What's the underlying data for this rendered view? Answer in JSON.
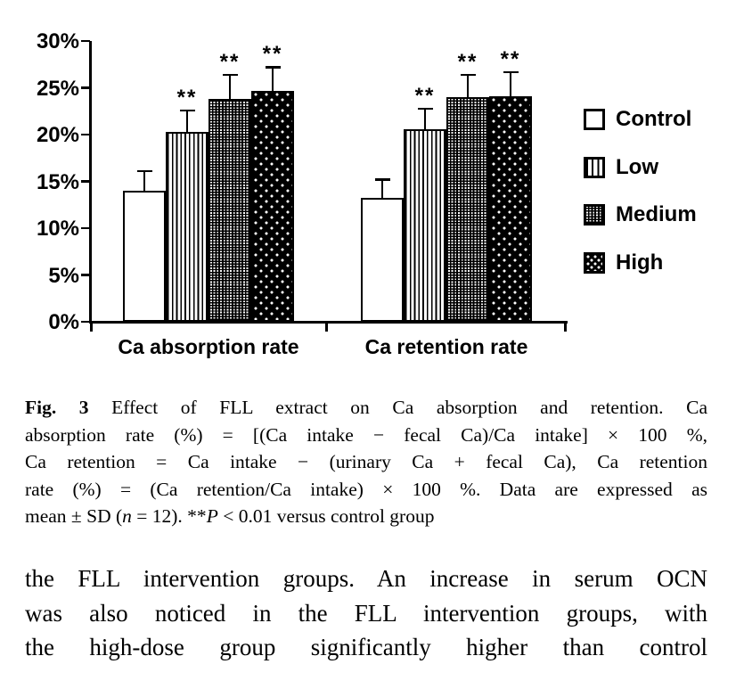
{
  "chart_data": {
    "type": "bar",
    "title": "",
    "categories": [
      "Ca absorption rate",
      "Ca retention rate"
    ],
    "series": [
      {
        "name": "Control",
        "pattern": "plain-white",
        "values": [
          14.0,
          13.2
        ],
        "sd": [
          2.1,
          2.0
        ],
        "significance": [
          "",
          ""
        ]
      },
      {
        "name": "Low",
        "pattern": "vertical-stripes",
        "values": [
          20.3,
          20.6
        ],
        "sd": [
          2.3,
          2.2
        ],
        "significance": [
          "**",
          "**"
        ]
      },
      {
        "name": "Medium",
        "pattern": "dense-white-dots-on-black",
        "values": [
          23.8,
          24.0
        ],
        "sd": [
          2.6,
          2.4
        ],
        "significance": [
          "**",
          "**"
        ]
      },
      {
        "name": "High",
        "pattern": "sparse-white-dots-on-black",
        "values": [
          24.7,
          24.1
        ],
        "sd": [
          2.5,
          2.6
        ],
        "significance": [
          "**",
          "**"
        ]
      }
    ],
    "xlabel": "",
    "ylabel": "",
    "ylim": [
      0,
      30
    ],
    "ytick_values": [
      0,
      5,
      10,
      15,
      20,
      25,
      30
    ],
    "yticks": [
      "0%",
      "5%",
      "10%",
      "15%",
      "20%",
      "25%",
      "30%"
    ],
    "grid": false,
    "legend_position": "right",
    "error_bars": "upper SD only, capped"
  },
  "figure_caption": {
    "fig_label": "Fig. 3",
    "line1_rest": " Effect of FLL extract on Ca absorption and retention. Ca",
    "line2": "absorption rate (%) = [(Ca intake − fecal Ca)/Ca intake] × 100 %,",
    "line3": "Ca retention = Ca intake − (urinary Ca + fecal Ca), Ca retention",
    "line4": "rate (%) = (Ca retention/Ca intake) × 100 %. Data are expressed as",
    "line5_pre": "mean ± SD (",
    "line5_n": "n",
    "line5_mid": " = 12). **",
    "line5_p": "P",
    "line5_post": " < 0.01 versus control group"
  },
  "body_text": {
    "line1": "the FLL intervention groups. An increase in serum OCN",
    "line2": "was also noticed in the FLL intervention groups, with",
    "line3": "the high-dose group significantly higher than control"
  },
  "colors": {
    "ink": "#000000",
    "paper": "#ffffff"
  }
}
